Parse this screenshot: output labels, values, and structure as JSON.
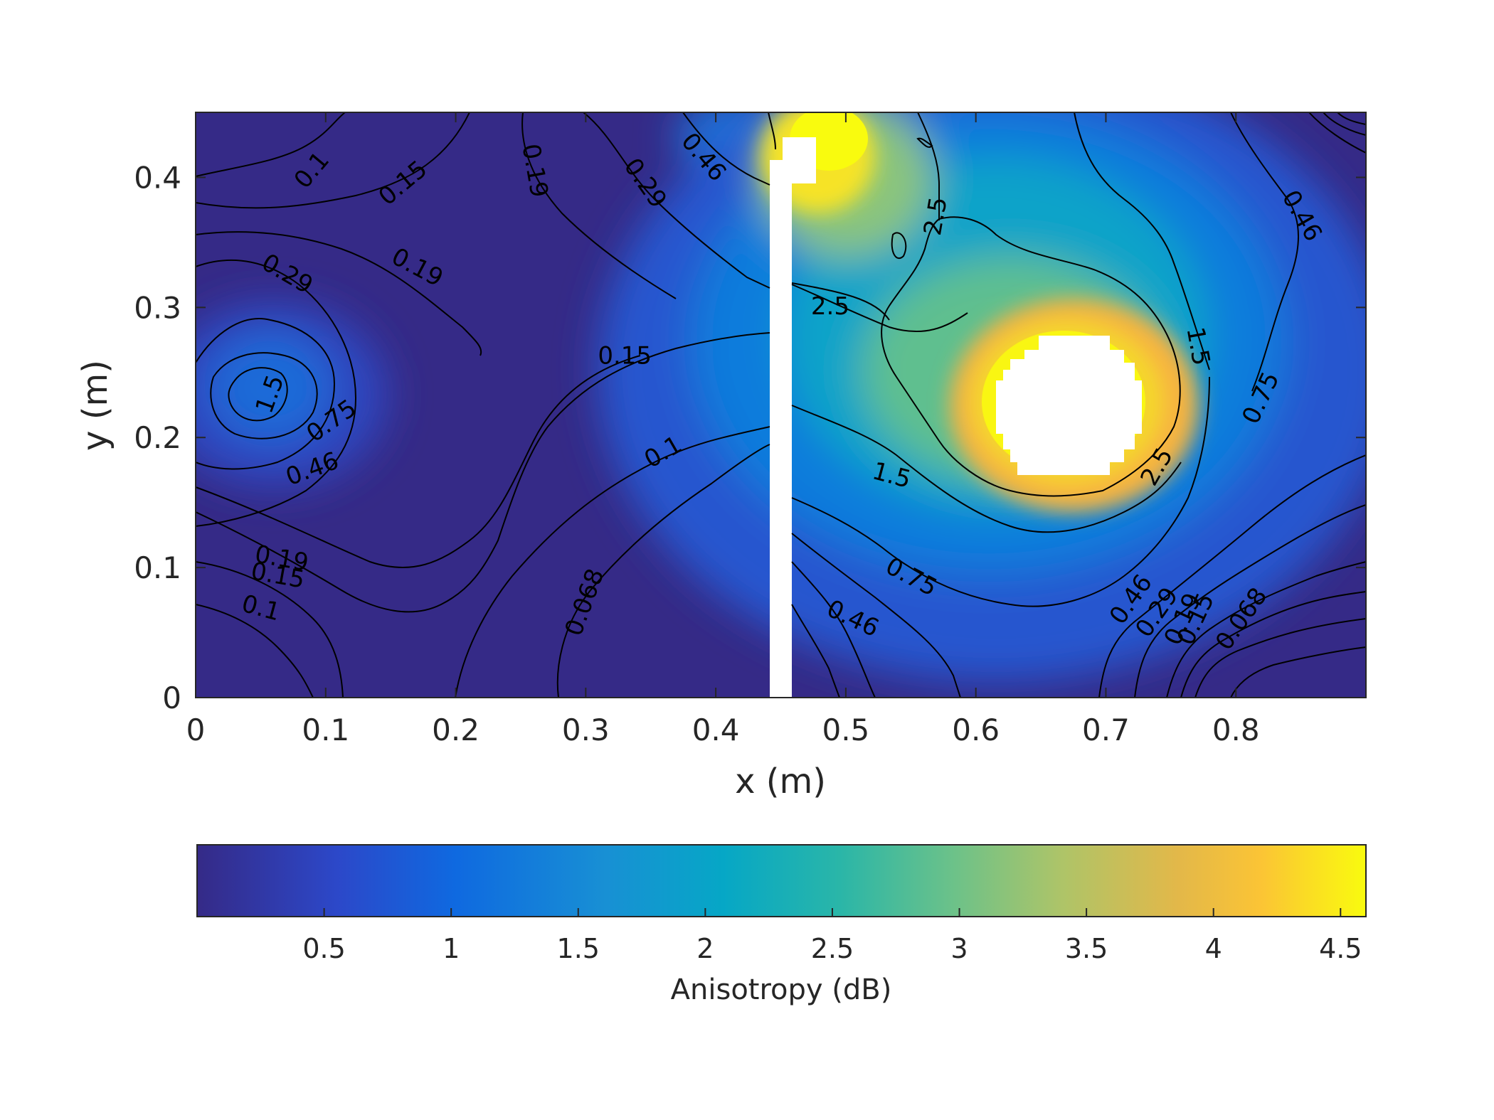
{
  "chart_data": {
    "type": "heatmap",
    "subtype": "filled-contour",
    "xlabel": "x (m)",
    "ylabel": "y (m)",
    "xlim": [
      0,
      0.9
    ],
    "ylim": [
      0,
      0.45
    ],
    "xticks": [
      0,
      0.1,
      0.2,
      0.3,
      0.4,
      0.5,
      0.6,
      0.7,
      0.8
    ],
    "xtick_labels": [
      "0",
      "0.1",
      "0.2",
      "0.3",
      "0.4",
      "0.5",
      "0.6",
      "0.7",
      "0.8"
    ],
    "yticks": [
      0,
      0.1,
      0.2,
      0.3,
      0.4
    ],
    "ytick_labels": [
      "0",
      "0.1",
      "0.2",
      "0.3",
      "0.4"
    ],
    "colorbar": {
      "label": "Anisotropy (dB)",
      "location": "bottom",
      "colormap": "parula",
      "clim": [
        0,
        4.6
      ],
      "ticks": [
        0.5,
        1,
        1.5,
        2,
        2.5,
        3,
        3.5,
        4,
        4.5
      ],
      "tick_labels": [
        "0.5",
        "1",
        "1.5",
        "2",
        "2.5",
        "3",
        "3.5",
        "4",
        "4.5"
      ]
    },
    "colors": {
      "background": "#352A87",
      "low": "#3E26A8",
      "mid": "#0F77DB",
      "mid2": "#06A7C6",
      "high2": "#A2C969",
      "high3": "#FEBB3E",
      "max": "#F9FB0E",
      "mask": "#FFFFFF"
    },
    "contour_levels": [
      0.068,
      0.1,
      0.15,
      0.19,
      0.29,
      0.46,
      0.75,
      1.5,
      2.5
    ],
    "contour_labels": [
      {
        "text": "0.1",
        "x": 0.09,
        "y": 0.405,
        "angle": -50
      },
      {
        "text": "0.15",
        "x": 0.16,
        "y": 0.395,
        "angle": -40
      },
      {
        "text": "0.19",
        "x": 0.26,
        "y": 0.405,
        "angle": 80
      },
      {
        "text": "0.29",
        "x": 0.345,
        "y": 0.395,
        "angle": 55
      },
      {
        "text": "0.46",
        "x": 0.39,
        "y": 0.415,
        "angle": 50
      },
      {
        "text": "0.29",
        "x": 0.07,
        "y": 0.325,
        "angle": 30
      },
      {
        "text": "0.19",
        "x": 0.17,
        "y": 0.33,
        "angle": 28
      },
      {
        "text": "0.15",
        "x": 0.33,
        "y": 0.262,
        "angle": 0
      },
      {
        "text": "0.1",
        "x": 0.36,
        "y": 0.188,
        "angle": -30
      },
      {
        "text": "0.068",
        "x": 0.3,
        "y": 0.073,
        "angle": -70
      },
      {
        "text": "1.5",
        "x": 0.058,
        "y": 0.233,
        "angle": -70
      },
      {
        "text": "0.75",
        "x": 0.105,
        "y": 0.212,
        "angle": -35
      },
      {
        "text": "0.46",
        "x": 0.09,
        "y": 0.175,
        "angle": -20
      },
      {
        "text": "0.19",
        "x": 0.066,
        "y": 0.106,
        "angle": 10
      },
      {
        "text": "0.15",
        "x": 0.063,
        "y": 0.093,
        "angle": 10
      },
      {
        "text": "0.1",
        "x": 0.05,
        "y": 0.068,
        "angle": 15
      },
      {
        "text": "2.5",
        "x": 0.57,
        "y": 0.37,
        "angle": -80
      },
      {
        "text": "2.5",
        "x": 0.488,
        "y": 0.3,
        "angle": 0
      },
      {
        "text": "1.5",
        "x": 0.77,
        "y": 0.27,
        "angle": 80
      },
      {
        "text": "0.75",
        "x": 0.82,
        "y": 0.23,
        "angle": -65
      },
      {
        "text": "1.5",
        "x": 0.535,
        "y": 0.17,
        "angle": 15
      },
      {
        "text": "2.5",
        "x": 0.74,
        "y": 0.177,
        "angle": -60
      },
      {
        "text": "0.75",
        "x": 0.55,
        "y": 0.092,
        "angle": 28
      },
      {
        "text": "0.46",
        "x": 0.505,
        "y": 0.06,
        "angle": 25
      },
      {
        "text": "0.46",
        "x": 0.85,
        "y": 0.37,
        "angle": 60
      },
      {
        "text": "0.46",
        "x": 0.72,
        "y": 0.075,
        "angle": -55
      },
      {
        "text": "0.29",
        "x": 0.74,
        "y": 0.065,
        "angle": -55
      },
      {
        "text": "0.19",
        "x": 0.76,
        "y": 0.06,
        "angle": -65
      },
      {
        "text": "0.15",
        "x": 0.77,
        "y": 0.06,
        "angle": -65
      },
      {
        "text": "0.068",
        "x": 0.805,
        "y": 0.06,
        "angle": -55
      }
    ]
  }
}
